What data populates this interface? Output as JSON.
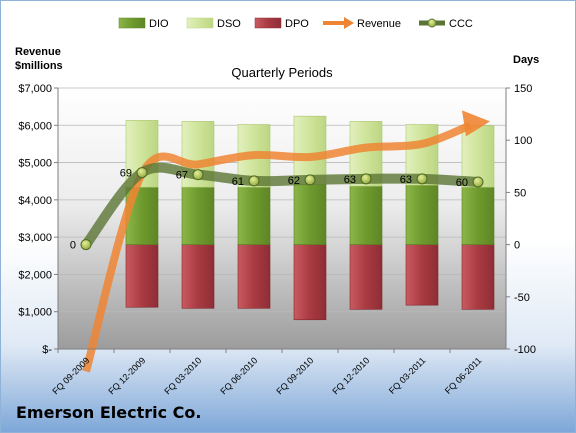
{
  "company": "Emerson Electric Co.",
  "chart_data": {
    "type": "combo",
    "title": "Quarterly Periods",
    "ylabel_left": "Revenue\n$millions",
    "ylabel_right": "Days",
    "categories": [
      "FQ 09-2009",
      "FQ 12-2009",
      "FQ 03-2010",
      "FQ 06-2010",
      "FQ 09-2010",
      "FQ 12-2010",
      "FQ 03-2011",
      "FQ 06-2011"
    ],
    "left_axis": {
      "min": 0,
      "max": 7000,
      "step": 1000,
      "ticks": [
        "$-",
        "$1,000",
        "$2,000",
        "$3,000",
        "$4,000",
        "$5,000",
        "$6,000",
        "$7,000"
      ]
    },
    "right_axis": {
      "min": -100,
      "max": 150,
      "step": 50,
      "ticks": [
        "-100",
        "-50",
        "0",
        "50",
        "100",
        "150"
      ]
    },
    "legend_position": "top",
    "colors": {
      "DIO": "#7aa736",
      "DSO": "#d3e8a3",
      "DPO": "#b8434b",
      "Revenue": "#ef8533",
      "CCC": "#5b7535"
    },
    "series": [
      {
        "name": "DIO",
        "type": "stacked-bar",
        "axis": "right",
        "values": [
          null,
          55,
          55,
          55,
          58,
          56,
          57,
          55
        ]
      },
      {
        "name": "DSO",
        "type": "stacked-bar",
        "axis": "right",
        "values": [
          null,
          64,
          63,
          60,
          65,
          62,
          58,
          59
        ]
      },
      {
        "name": "DPO",
        "type": "stacked-bar",
        "axis": "right",
        "values": [
          null,
          -60,
          -61,
          -61,
          -72,
          -62,
          -58,
          -62
        ]
      },
      {
        "name": "Revenue",
        "type": "line",
        "axis": "left",
        "values": [
          -600,
          4700,
          4950,
          5200,
          5150,
          5400,
          5500,
          6050
        ]
      },
      {
        "name": "CCC",
        "type": "line",
        "axis": "right",
        "values": [
          0,
          69,
          67,
          61,
          62,
          63,
          63,
          60
        ],
        "labels": [
          "0",
          "69",
          "67",
          "61",
          "62",
          "63",
          "63",
          "60"
        ]
      }
    ]
  }
}
